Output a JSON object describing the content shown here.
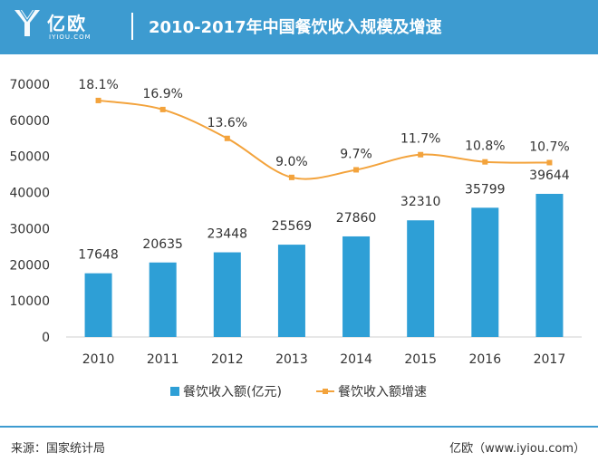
{
  "header": {
    "brand_cn": "亿欧",
    "brand_en": "IYIOU.COM",
    "title": "2010-2017年中国餐饮收入规模及增速"
  },
  "colors": {
    "header_bg": "#3d9bd0",
    "bar": "#2e9fd6",
    "line": "#f3a33c"
  },
  "chart_data": {
    "type": "bar",
    "categories": [
      "2010",
      "2011",
      "2012",
      "2013",
      "2014",
      "2015",
      "2016",
      "2017"
    ],
    "series": [
      {
        "name": "餐饮收入额(亿元)",
        "kind": "bar",
        "values": [
          17648,
          20635,
          23448,
          25569,
          27860,
          32310,
          35799,
          39644
        ],
        "labels": [
          "17648",
          "20635",
          "23448",
          "25569",
          "27860",
          "32310",
          "35799",
          "39644"
        ]
      },
      {
        "name": "餐饮收入额增速",
        "kind": "line",
        "values": [
          18.1,
          16.9,
          13.6,
          9.0,
          9.7,
          11.7,
          10.8,
          10.7
        ],
        "labels": [
          "18.1%",
          "16.9%",
          "13.6%",
          "9.0%",
          "9.7%",
          "11.7%",
          "10.8%",
          "10.7%"
        ],
        "plot_values": [
          65500,
          63000,
          55000,
          44200,
          46300,
          50500,
          48500,
          48300
        ]
      }
    ],
    "y_ticks": [
      "0",
      "10000",
      "20000",
      "30000",
      "40000",
      "50000",
      "60000",
      "70000"
    ],
    "ylim": [
      0,
      70000
    ],
    "legend_position": "bottom",
    "grid": false
  },
  "footer": {
    "source": "来源：国家统计局",
    "credit": "亿欧（www.iyiou.com）"
  }
}
